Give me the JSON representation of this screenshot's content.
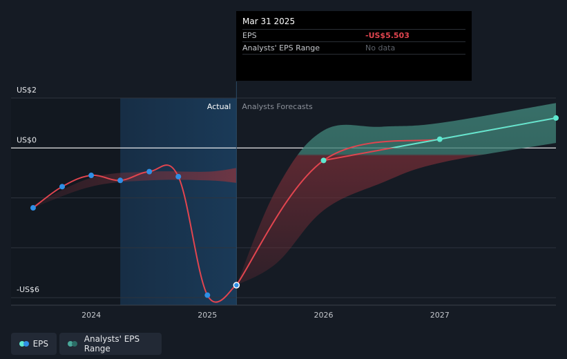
{
  "chart_data": {
    "type": "line",
    "y_ticks": [
      {
        "value": 2,
        "label": "US$2"
      },
      {
        "value": 0,
        "label": "US$0"
      },
      {
        "value": -6,
        "label": "-US$6"
      }
    ],
    "ylim": [
      -6.3,
      2
    ],
    "x_ticks": [
      {
        "value": 2024,
        "label": "2024"
      },
      {
        "value": 2025,
        "label": "2025"
      },
      {
        "value": 2026,
        "label": "2026"
      },
      {
        "value": 2027,
        "label": "2027"
      }
    ],
    "xlim": [
      2023.31,
      2028.0
    ],
    "divider_x": 2025.25,
    "highlight_start_x": 2024.25,
    "region_labels": {
      "actual": "Actual",
      "forecast": "Analysts Forecasts"
    },
    "series": [
      {
        "name": "EPS",
        "color": "#e2454f",
        "marker_color": "#2f8fe6",
        "points": [
          {
            "x": 2023.5,
            "y": -2.4
          },
          {
            "x": 2023.75,
            "y": -1.55
          },
          {
            "x": 2024.0,
            "y": -1.1
          },
          {
            "x": 2024.25,
            "y": -1.3
          },
          {
            "x": 2024.5,
            "y": -0.95
          },
          {
            "x": 2024.75,
            "y": -1.15
          },
          {
            "x": 2025.0,
            "y": -5.9
          },
          {
            "x": 2025.25,
            "y": -5.5
          }
        ]
      },
      {
        "name": "EPS Forecast",
        "color": "#e2454f",
        "marker_color": "#5ee8d0",
        "points": [
          {
            "x": 2025.25,
            "y": -5.5
          },
          {
            "x": 2026.0,
            "y": -0.5
          },
          {
            "x": 2027.0,
            "y": 0.35
          },
          {
            "x": 2028.0,
            "y": 1.2
          }
        ]
      }
    ],
    "past_range": {
      "x": [
        2023.5,
        2024.0,
        2024.5,
        2025.0,
        2025.25
      ],
      "upper": [
        -2.3,
        -1.2,
        -0.95,
        -0.95,
        -0.8
      ],
      "lower": [
        -2.4,
        -1.55,
        -1.3,
        -1.3,
        -1.4
      ]
    },
    "forecast_range": {
      "x": [
        2025.25,
        2025.6,
        2026.0,
        2026.5,
        2027.0,
        2028.0
      ],
      "upper": [
        -5.5,
        -1.6,
        0.7,
        0.85,
        1.0,
        1.8
      ],
      "lower": [
        -5.5,
        -4.6,
        -2.5,
        -1.4,
        -0.6,
        0.2
      ]
    }
  },
  "tooltip": {
    "date": "Mar 31 2025",
    "eps_label": "EPS",
    "eps_value": "-US$5.503",
    "range_label": "Analysts' EPS Range",
    "range_value": "No data"
  },
  "legend": {
    "eps_label": "EPS",
    "range_label": "Analysts' EPS Range",
    "eps_dot_colors": [
      "#5ee8d0",
      "#2f8fe6"
    ],
    "range_dot_colors": [
      "#4aa89a",
      "#2c6d66"
    ]
  }
}
